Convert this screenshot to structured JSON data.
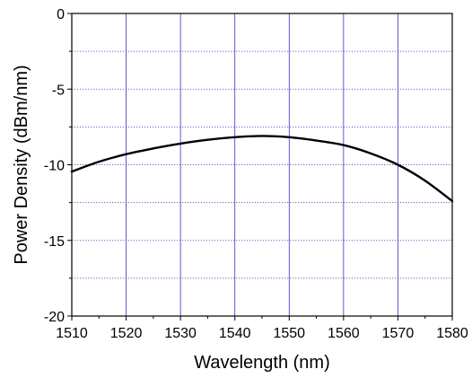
{
  "chart_data": {
    "type": "line",
    "title": "",
    "xlabel": "Wavelength (nm)",
    "ylabel": "Power Density (dBm/nm)",
    "xlim": [
      1510,
      1580
    ],
    "ylim": [
      -20,
      0
    ],
    "x_ticks": [
      "1510",
      "1520",
      "1530",
      "1540",
      "1550",
      "1560",
      "1570",
      "1580"
    ],
    "y_ticks": [
      "0",
      "-5",
      "-10",
      "-15",
      "-20"
    ],
    "grid": true,
    "grid_style": "dotted",
    "grid_color": "#3333cc",
    "line_color": "#000000",
    "series": [
      {
        "x": [
          1510,
          1515,
          1520,
          1525,
          1530,
          1535,
          1540,
          1545,
          1550,
          1555,
          1560,
          1565,
          1570,
          1575,
          1580
        ],
        "values": [
          -10.45,
          -9.8,
          -9.3,
          -8.92,
          -8.6,
          -8.35,
          -8.18,
          -8.1,
          -8.18,
          -8.4,
          -8.7,
          -9.25,
          -10.0,
          -11.05,
          -12.4
        ]
      }
    ]
  }
}
